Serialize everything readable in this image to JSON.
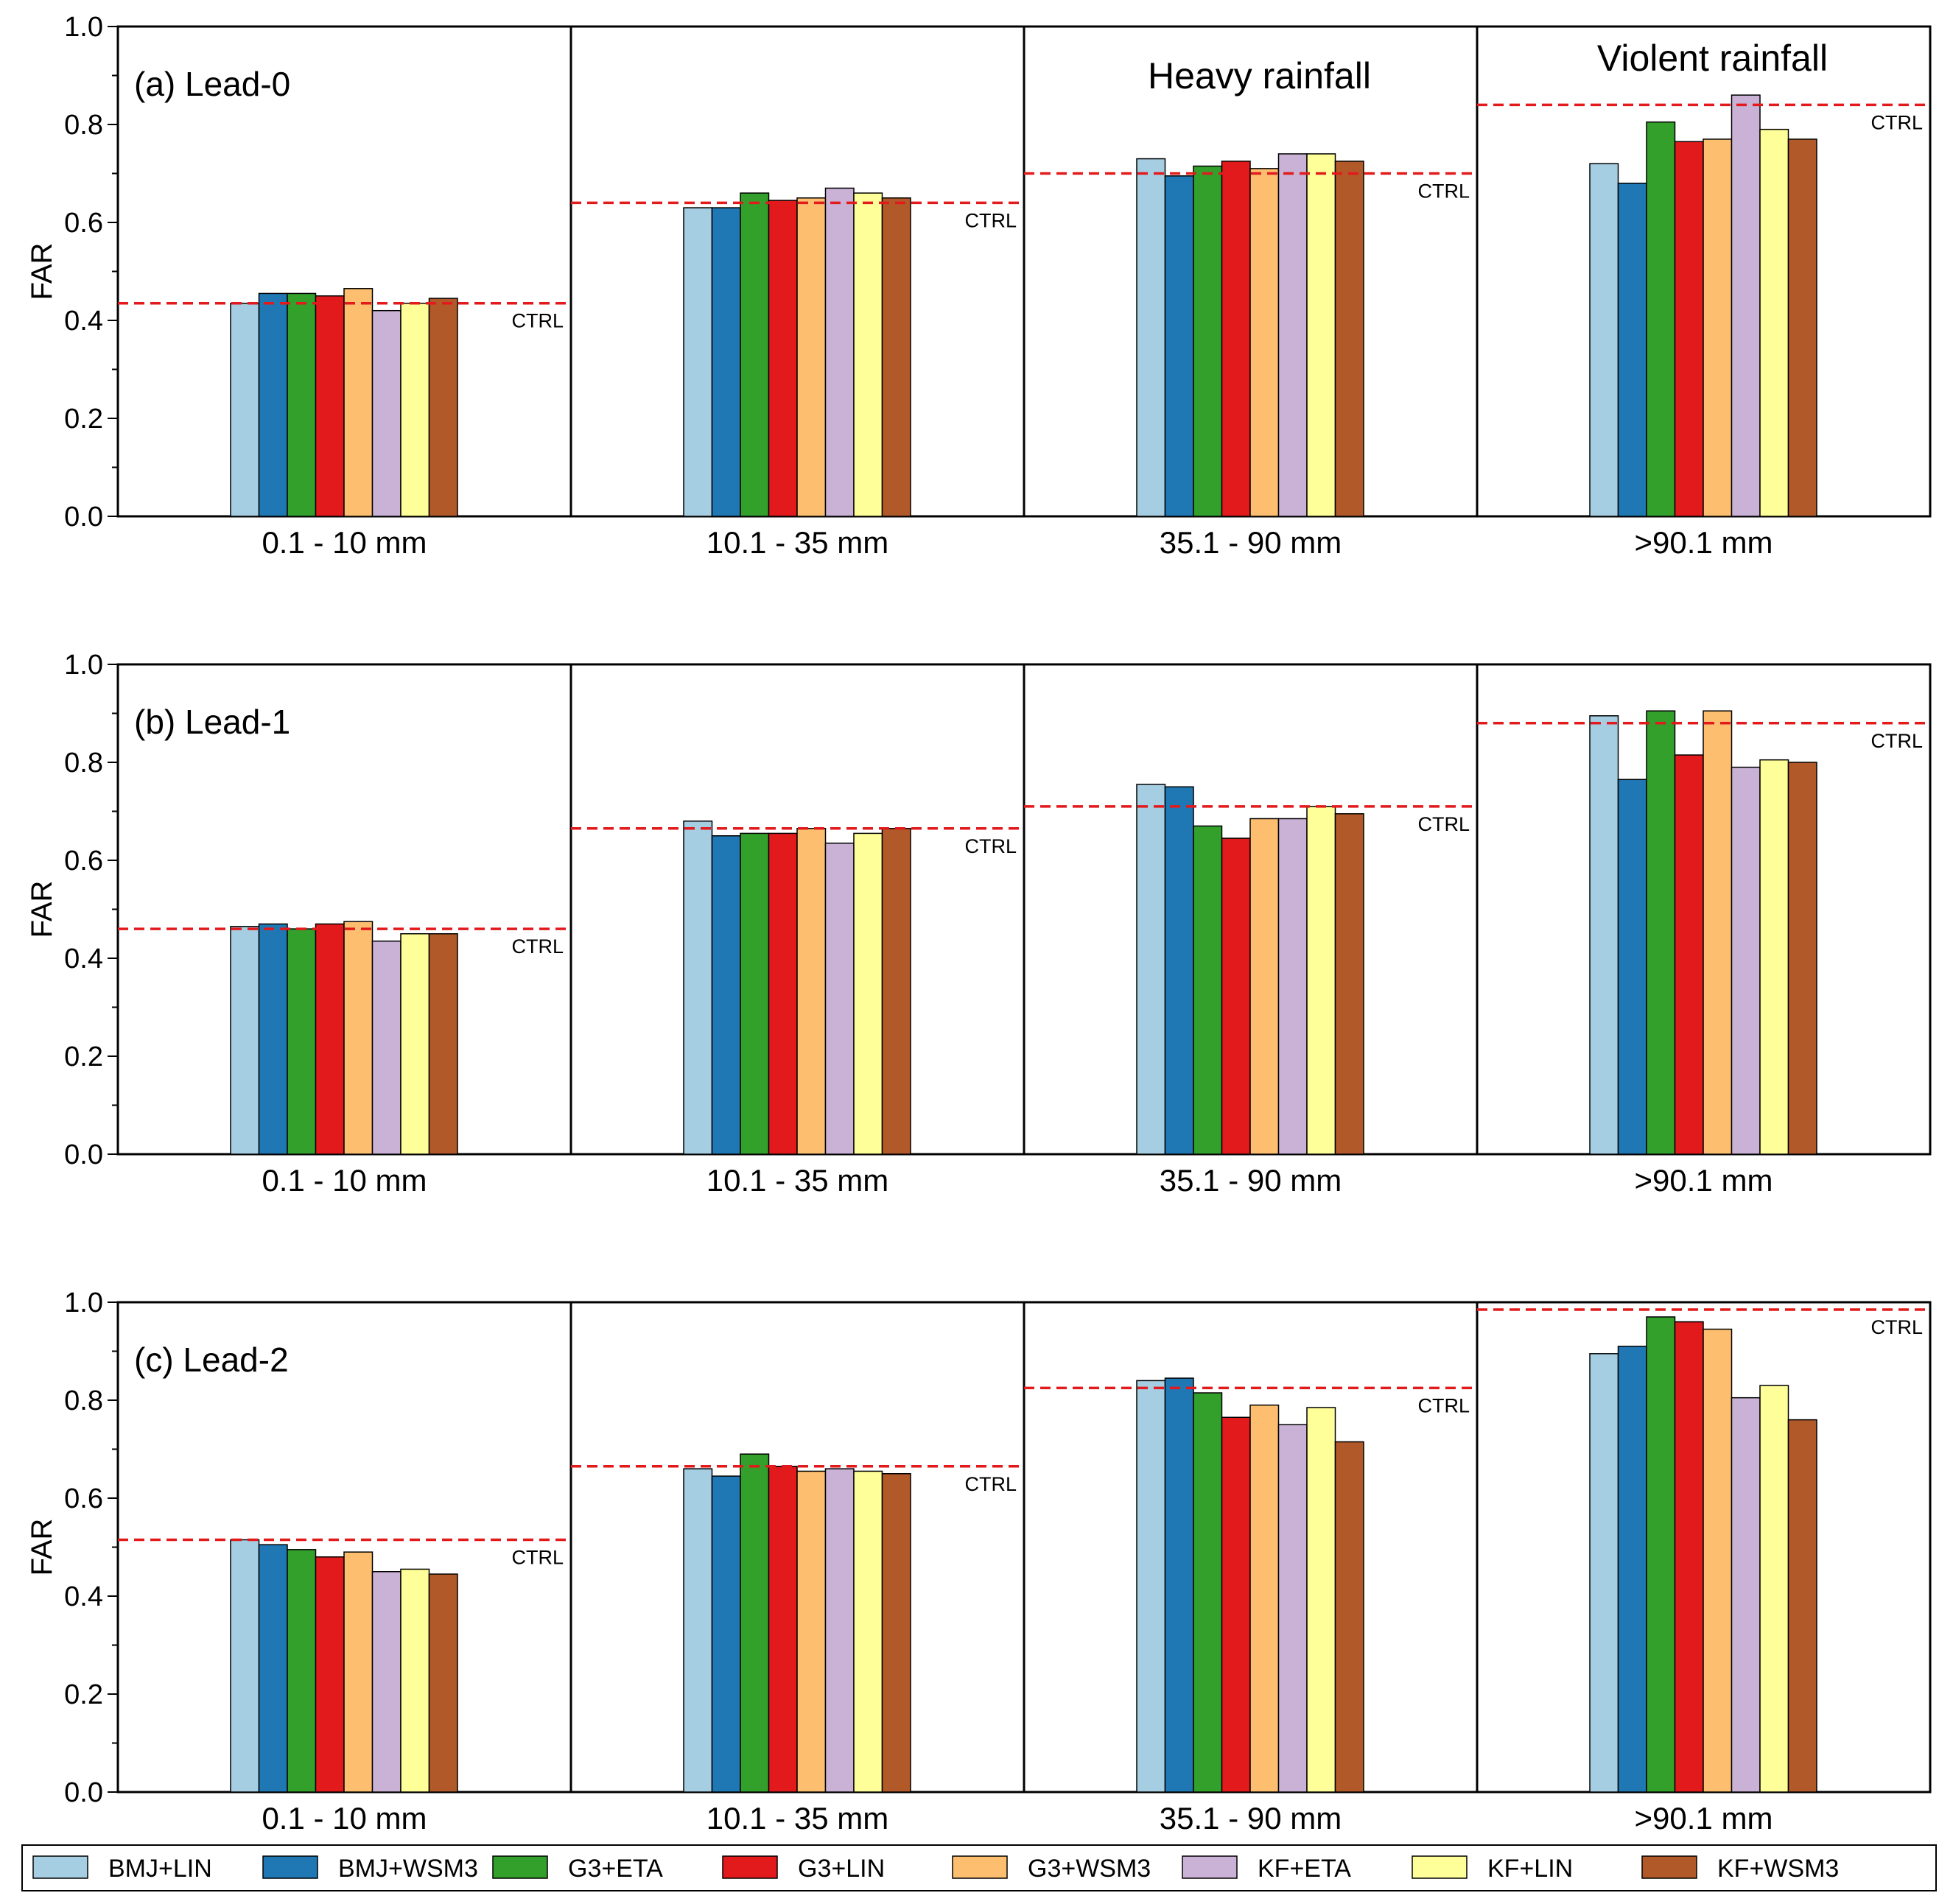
{
  "chart_data": {
    "type": "bar",
    "ylabel": "FAR",
    "ylim": [
      0,
      1.0
    ],
    "yticks": [
      "0.0",
      "0.2",
      "0.4",
      "0.6",
      "0.8",
      "1.0"
    ],
    "categories": [
      "0.1 - 10 mm",
      "10.1 - 35 mm",
      "35.1 - 90 mm",
      ">90.1 mm"
    ],
    "category_titles": [
      "",
      "",
      "Heavy rainfall",
      "Violent rainfall"
    ],
    "ctrl_label": "CTRL",
    "series_names": [
      "BMJ+LIN",
      "BMJ+WSM3",
      "G3+ETA",
      "G3+LIN",
      "G3+WSM3",
      "KF+ETA",
      "KF+LIN",
      "KF+WSM3"
    ],
    "series_colors": [
      "#a6cee3",
      "#1f78b4",
      "#33a02c",
      "#e31a1c",
      "#fdbf6f",
      "#cab2d6",
      "#ffff99",
      "#b15928"
    ],
    "ctrl_color": "#e31a1c",
    "panels": [
      {
        "title": "(a) Lead-0",
        "ctrl": [
          0.435,
          0.64,
          0.7,
          0.84
        ],
        "values": [
          [
            0.435,
            0.455,
            0.455,
            0.45,
            0.465,
            0.42,
            0.435,
            0.445
          ],
          [
            0.63,
            0.63,
            0.66,
            0.645,
            0.65,
            0.67,
            0.66,
            0.65
          ],
          [
            0.73,
            0.695,
            0.715,
            0.725,
            0.71,
            0.74,
            0.74,
            0.725
          ],
          [
            0.72,
            0.68,
            0.805,
            0.765,
            0.77,
            0.86,
            0.79,
            0.77
          ]
        ]
      },
      {
        "title": "(b) Lead-1",
        "ctrl": [
          0.46,
          0.665,
          0.71,
          0.88
        ],
        "values": [
          [
            0.465,
            0.47,
            0.46,
            0.47,
            0.475,
            0.435,
            0.45,
            0.45
          ],
          [
            0.68,
            0.65,
            0.655,
            0.655,
            0.665,
            0.635,
            0.655,
            0.665
          ],
          [
            0.755,
            0.75,
            0.67,
            0.645,
            0.685,
            0.685,
            0.71,
            0.695
          ],
          [
            0.895,
            0.765,
            0.905,
            0.815,
            0.905,
            0.79,
            0.805,
            0.8
          ]
        ]
      },
      {
        "title": "(c) Lead-2",
        "ctrl": [
          0.515,
          0.665,
          0.825,
          0.985
        ],
        "values": [
          [
            0.515,
            0.505,
            0.495,
            0.48,
            0.49,
            0.45,
            0.455,
            0.445
          ],
          [
            0.66,
            0.645,
            0.69,
            0.665,
            0.655,
            0.66,
            0.655,
            0.65
          ],
          [
            0.84,
            0.845,
            0.815,
            0.765,
            0.79,
            0.75,
            0.785,
            0.715
          ],
          [
            0.895,
            0.91,
            0.97,
            0.96,
            0.945,
            0.805,
            0.83,
            0.76
          ]
        ]
      }
    ]
  }
}
